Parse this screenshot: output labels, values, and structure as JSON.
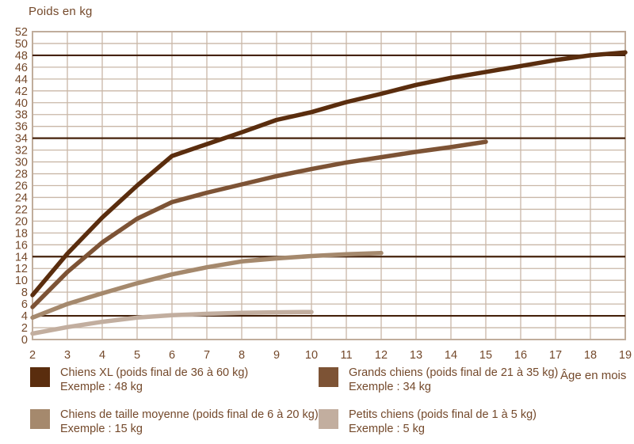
{
  "title": "Poids en kg",
  "x_axis_label": "Âge en mois",
  "chart_data": {
    "type": "line",
    "title": "Poids en kg",
    "xlabel": "Âge en mois",
    "ylabel": "Poids en kg",
    "xlim": [
      2,
      19
    ],
    "ylim": [
      0,
      52
    ],
    "x_ticks": [
      2,
      3,
      4,
      5,
      6,
      7,
      8,
      9,
      10,
      11,
      12,
      13,
      14,
      15,
      16,
      17,
      18,
      19
    ],
    "y_tick_step": 2,
    "grid": true,
    "legend_position": "bottom",
    "colors": {
      "grid": "#C9B7A7",
      "border": "#C0AD9C",
      "reference": "#45220B",
      "text": "#74492B"
    },
    "reference_lines": [
      48,
      34,
      14,
      4
    ],
    "series": [
      {
        "name": "Chiens XL",
        "color": "#5A2D0E",
        "x": [
          2,
          3,
          4,
          5,
          6,
          7,
          8,
          9,
          10,
          11,
          12,
          13,
          14,
          15,
          16,
          17,
          18,
          19
        ],
        "values": [
          7.5,
          14.5,
          20.6,
          26,
          31,
          33,
          35,
          37.1,
          38.4,
          40.1,
          41.5,
          43,
          44.2,
          45.2,
          46.2,
          47.2,
          48,
          48.5
        ]
      },
      {
        "name": "Grands chiens",
        "color": "#7D5335",
        "x": [
          2,
          3,
          4,
          5,
          6,
          7,
          8,
          9,
          10,
          11,
          12,
          13,
          14,
          15
        ],
        "values": [
          5.5,
          11.4,
          16.4,
          20.4,
          23.2,
          24.8,
          26.2,
          27.6,
          28.8,
          29.9,
          30.8,
          31.7,
          32.5,
          33.4
        ]
      },
      {
        "name": "Chiens de taille moyenne",
        "color": "#A5896D",
        "x": [
          2,
          3,
          4,
          5,
          6,
          7,
          8,
          9,
          10,
          11,
          12
        ],
        "values": [
          3.7,
          6.0,
          7.8,
          9.5,
          11.0,
          12.2,
          13.2,
          13.7,
          14.1,
          14.4,
          14.6
        ]
      },
      {
        "name": "Petits chiens",
        "color": "#C2AE9F",
        "x": [
          2,
          3,
          4,
          5,
          6,
          7,
          8,
          9,
          10
        ],
        "values": [
          1.0,
          2.1,
          3.0,
          3.7,
          4.1,
          4.35,
          4.5,
          4.6,
          4.65
        ]
      }
    ],
    "legend": [
      {
        "label": "Chiens XL (poids final de 36 à 60 kg)",
        "example": "Exemple : 48 kg",
        "color": "#5A2D0E"
      },
      {
        "label": "Grands chiens (poids final de 21 à 35 kg)",
        "example": "Exemple : 34 kg",
        "color": "#7D5335"
      },
      {
        "label": "Chiens de taille moyenne (poids final de 6 à 20 kg)",
        "example": "Exemple : 15 kg",
        "color": "#A5896D"
      },
      {
        "label": "Petits chiens (poids final de 1 à 5 kg)",
        "example": "Exemple : 5 kg",
        "color": "#C2AE9F"
      }
    ]
  }
}
